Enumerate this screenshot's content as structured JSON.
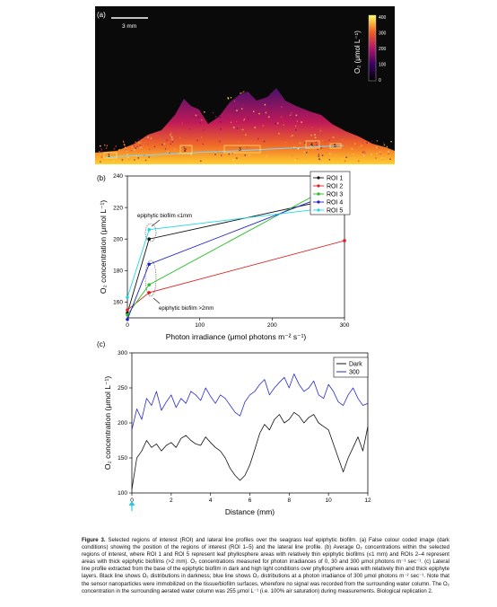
{
  "panel_a": {
    "label": "(a)",
    "scalebar": "3 mm",
    "colorbar": {
      "title": "O₂ (μmol L⁻¹)",
      "ticks": [
        "400",
        "300",
        "200",
        "100",
        "0"
      ]
    },
    "roi_labels": [
      "1",
      "2",
      "3",
      "4",
      "5"
    ],
    "colors": {
      "background": "#0a0a0a",
      "low": "#3a0060",
      "mid": "#d21e4a",
      "high": "#ffe030"
    }
  },
  "panel_b": {
    "label": "(b)"
  },
  "panel_c": {
    "label": "(c)"
  },
  "chart_data": [
    {
      "type": "line",
      "panel": "b",
      "xlabel": "Photon irradiance (μmol photons m⁻² s⁻¹)",
      "ylabel": "O₂ concentration (μmol L⁻¹)",
      "xlim": [
        0,
        300
      ],
      "ylim": [
        150,
        240
      ],
      "xticks": [
        "0",
        "100",
        "200",
        "300"
      ],
      "yticks": [
        "160",
        "180",
        "200",
        "220",
        "240"
      ],
      "x": [
        0,
        30,
        300
      ],
      "series": [
        {
          "name": "ROI 1",
          "color": "#111111",
          "values": [
            153,
            200,
            227
          ]
        },
        {
          "name": "ROI 2",
          "color": "#e02020",
          "values": [
            155,
            166,
            199
          ]
        },
        {
          "name": "ROI 3",
          "color": "#20c020",
          "values": [
            152,
            171,
            238
          ]
        },
        {
          "name": "ROI 4",
          "color": "#2020d0",
          "values": [
            149,
            184,
            232
          ]
        },
        {
          "name": "ROI 5",
          "color": "#20d8e0",
          "values": [
            163,
            206,
            221
          ]
        }
      ],
      "annotations": [
        "epiphytic biofilm ≤1mm",
        "epiphytic biofilm >2mm"
      ],
      "legend": "top-right"
    },
    {
      "type": "line",
      "panel": "c",
      "xlabel": "Distance (mm)",
      "ylabel": "O₂ concentration (μmol L⁻¹)",
      "xlim": [
        0,
        12
      ],
      "ylim": [
        100,
        300
      ],
      "xticks": [
        "0",
        "2",
        "4",
        "6",
        "8",
        "10",
        "12"
      ],
      "yticks": [
        "100",
        "150",
        "200",
        "250",
        "300"
      ],
      "series": [
        {
          "name": "Dark",
          "color": "#111111",
          "x": [
            0,
            0.25,
            0.5,
            0.75,
            1,
            1.25,
            1.5,
            1.75,
            2,
            2.25,
            2.5,
            2.75,
            3,
            3.25,
            3.5,
            3.75,
            4,
            4.25,
            4.5,
            4.75,
            5,
            5.25,
            5.5,
            5.75,
            6,
            6.25,
            6.5,
            6.75,
            7,
            7.25,
            7.5,
            7.75,
            8,
            8.25,
            8.5,
            8.75,
            9,
            9.25,
            9.5,
            9.75,
            10,
            10.25,
            10.5,
            10.75,
            11,
            11.25,
            11.5,
            11.75,
            12
          ],
          "values": [
            105,
            150,
            160,
            175,
            165,
            170,
            160,
            168,
            172,
            165,
            178,
            182,
            175,
            170,
            168,
            180,
            172,
            165,
            160,
            150,
            135,
            125,
            118,
            125,
            140,
            162,
            185,
            198,
            190,
            205,
            212,
            200,
            205,
            215,
            210,
            200,
            208,
            212,
            200,
            195,
            190,
            170,
            150,
            130,
            150,
            165,
            180,
            160,
            195
          ]
        },
        {
          "name": "300",
          "color": "#2a2ad0",
          "x": [
            0,
            0.25,
            0.5,
            0.75,
            1,
            1.25,
            1.5,
            1.75,
            2,
            2.25,
            2.5,
            2.75,
            3,
            3.25,
            3.5,
            3.75,
            4,
            4.25,
            4.5,
            4.75,
            5,
            5.25,
            5.5,
            5.75,
            6,
            6.25,
            6.5,
            6.75,
            7,
            7.25,
            7.5,
            7.75,
            8,
            8.25,
            8.5,
            8.75,
            9,
            9.25,
            9.5,
            9.75,
            10,
            10.25,
            10.5,
            10.75,
            11,
            11.25,
            11.5,
            11.75,
            12
          ],
          "values": [
            190,
            220,
            205,
            235,
            225,
            245,
            218,
            230,
            240,
            222,
            235,
            228,
            245,
            240,
            232,
            250,
            238,
            228,
            240,
            235,
            225,
            215,
            210,
            230,
            240,
            245,
            255,
            262,
            240,
            250,
            258,
            265,
            250,
            270,
            255,
            245,
            250,
            260,
            240,
            235,
            255,
            245,
            230,
            225,
            240,
            250,
            235,
            225,
            228
          ]
        }
      ],
      "legend": "top-right"
    }
  ],
  "caption": {
    "lead": "Figure 3.",
    "text": " Selected regions of interest (ROI) and lateral line profiles over the seagrass leaf epiphytic biofilm. (a) False colour coded image (dark conditions) showing the position of the regions of interest (ROI 1–5) and the lateral line profile. (b) Average O₂ concentrations within the selected regions of interest, where ROI 1 and ROI 5 represent leaf phyllosphere areas with relatively thin epiphytic biofilms (≤1 mm) and ROIs 2–4 represent areas with thick epiphytic biofilms (>2 mm). O₂ concentrations measured for photon irradiances of 0, 30 and 300 μmol photons m⁻¹ sec⁻¹. (c) Lateral line profile extracted from the base of the epiphytic biofilm in dark and high light conditions over phyllosphere areas with relatively thin and thick epiphyte layers. Black line shows O₂ distributions in darkness; blue line shows O₂ distributions at a photon irradiance of 300 μmol photons m⁻² sec⁻¹. Note that the sensor nanoparticles were immobilized on the tissue/biofilm surfaces, wherefore no signal was recorded from the surrounding water column. The O₂ concentration in the surrounding aerated water column was 255 μmol L⁻¹ (i.e. 100% air saturation) during measurements. Biological replication 2."
  }
}
